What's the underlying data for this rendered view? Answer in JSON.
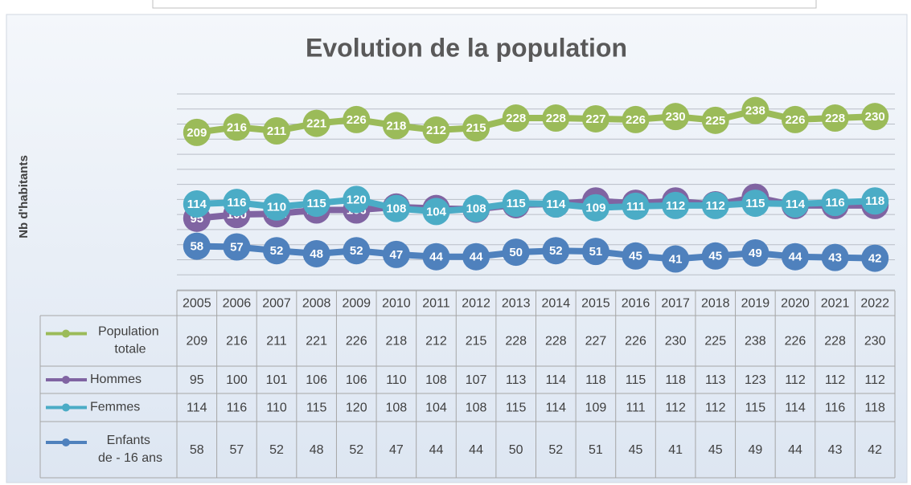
{
  "chart_data": {
    "type": "line",
    "title": "Evolution de la population",
    "y_label": "Nb d'habitants",
    "categories": [
      "2005",
      "2006",
      "2007",
      "2008",
      "2009",
      "2010",
      "2011",
      "2012",
      "2013",
      "2014",
      "2015",
      "2016",
      "2017",
      "2018",
      "2019",
      "2020",
      "2021",
      "2022"
    ],
    "series": [
      {
        "name": "Population totale",
        "color": "#9bbb59",
        "values": [
          209,
          216,
          211,
          221,
          226,
          218,
          212,
          215,
          228,
          228,
          227,
          226,
          230,
          225,
          238,
          226,
          228,
          230
        ]
      },
      {
        "name": "Hommes",
        "color": "#8064a2",
        "values": [
          95,
          100,
          101,
          106,
          106,
          110,
          108,
          107,
          113,
          114,
          118,
          115,
          118,
          113,
          123,
          112,
          112,
          112
        ]
      },
      {
        "name": "Femmes",
        "color": "#4bacc6",
        "values": [
          114,
          116,
          110,
          115,
          120,
          108,
          104,
          108,
          115,
          114,
          109,
          111,
          112,
          112,
          115,
          114,
          116,
          118
        ]
      },
      {
        "name": "Enfants de - 16 ans",
        "color": "#4f81bd",
        "values": [
          58,
          57,
          52,
          48,
          52,
          47,
          44,
          44,
          50,
          52,
          51,
          45,
          41,
          45,
          49,
          44,
          43,
          42
        ]
      }
    ],
    "ylim": [
      0,
      260
    ],
    "yticks": [
      0,
      20,
      40,
      60,
      80,
      100,
      120,
      140,
      160,
      180,
      200,
      220,
      240,
      260
    ],
    "grid": true
  }
}
